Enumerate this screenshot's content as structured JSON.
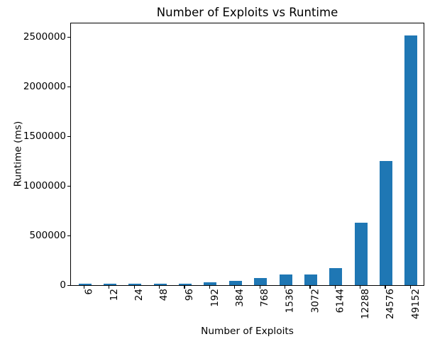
{
  "chart_data": {
    "type": "bar",
    "title": "Number of Exploits vs Runtime",
    "xlabel": "Number of Exploits",
    "ylabel": "Runtime (ms)",
    "categories": [
      "6",
      "12",
      "24",
      "48",
      "96",
      "192",
      "384",
      "768",
      "1536",
      "3072",
      "6144",
      "12288",
      "24576",
      "49152"
    ],
    "values": [
      15000,
      15000,
      15000,
      15000,
      16000,
      30000,
      46000,
      70000,
      108000,
      105000,
      175000,
      627000,
      1250000,
      2515000
    ],
    "y_ticks": [
      0,
      500000,
      1000000,
      1500000,
      2000000,
      2500000
    ],
    "y_tick_labels": [
      "0",
      "500000",
      "1000000",
      "1500000",
      "2000000",
      "2500000"
    ],
    "ylim": [
      0,
      2643000
    ],
    "x_tick_rotation": 90,
    "grid": false,
    "legend": null,
    "bar_color": "#1f77b4",
    "axis_color": "#000000",
    "background_color": "#ffffff"
  }
}
